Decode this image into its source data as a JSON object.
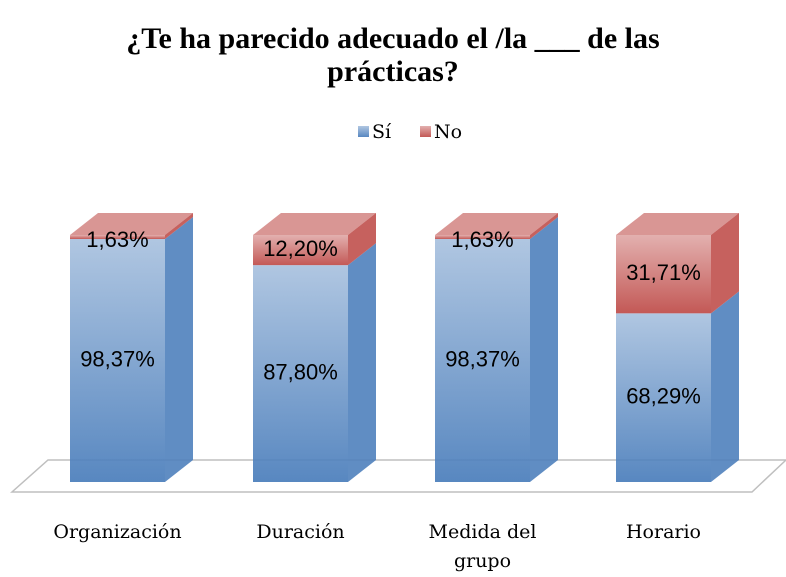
{
  "chart_data": {
    "type": "bar",
    "title": "¿Te ha parecido adecuado el /la ___ de las prácticas?",
    "categories": [
      "Organización",
      "Duración",
      "Medida del grupo",
      "Horario"
    ],
    "series": [
      {
        "name": "Sí",
        "color": "#4f81bd",
        "values": [
          98.37,
          87.8,
          98.37,
          68.29
        ],
        "value_labels": [
          "98,37%",
          "87,80%",
          "98,37%",
          "68,29%"
        ]
      },
      {
        "name": "No",
        "color": "#c0504d",
        "values": [
          1.63,
          12.2,
          1.63,
          31.71
        ],
        "value_labels": [
          "1,63%",
          "12,20%",
          "1,63%",
          "31,71%"
        ]
      }
    ],
    "legend": "top"
  }
}
